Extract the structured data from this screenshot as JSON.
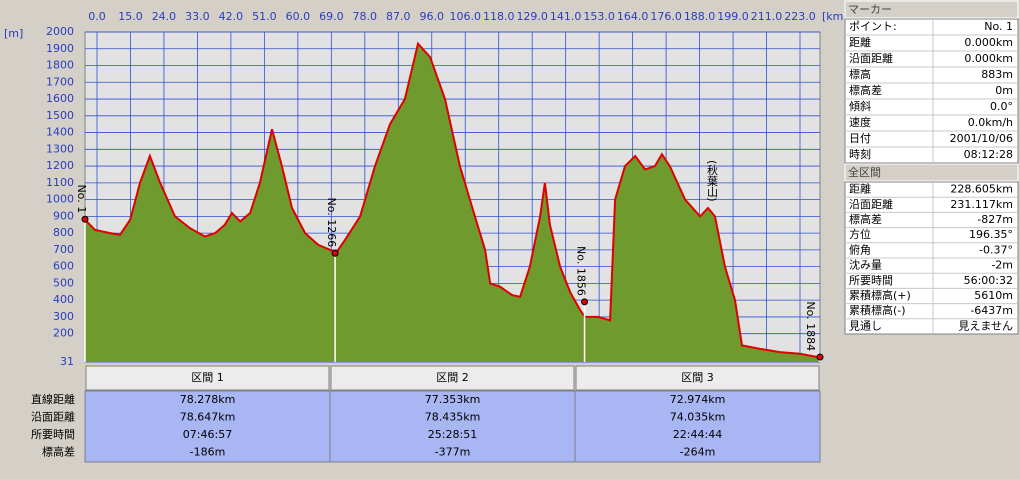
{
  "chart_data": {
    "type": "area",
    "y_axis_label": "[m]",
    "x_axis_label": "[km]",
    "xtick_labels": [
      "0.0",
      "15.0",
      "24.0",
      "33.0",
      "42.0",
      "51.0",
      "60.0",
      "69.0",
      "78.0",
      "87.0",
      "96.0",
      "106.0",
      "118.0",
      "129.0",
      "141.0",
      "153.0",
      "164.0",
      "176.0",
      "188.0",
      "199.0",
      "211.0",
      "223.0"
    ],
    "xlim": [
      0,
      231.117
    ],
    "ylim": [
      31,
      2000
    ],
    "yticks": [
      31,
      200,
      300,
      400,
      500,
      600,
      700,
      800,
      900,
      1000,
      1100,
      1200,
      1300,
      1400,
      1500,
      1600,
      1700,
      1800,
      1900,
      2000
    ],
    "grid": true,
    "x": [
      0,
      3.1,
      7.9,
      11.0,
      14.2,
      17.3,
      20.4,
      23.6,
      28.3,
      33.0,
      37.7,
      40.9,
      44.0,
      46.2,
      48.8,
      51.9,
      55.0,
      58.8,
      61.9,
      65.1,
      69.2,
      73.3,
      77.1,
      78.9,
      81.8,
      86.5,
      91.2,
      95.9,
      100.6,
      104.7,
      108.5,
      113.2,
      117.9,
      122.6,
      125.8,
      127.4,
      130.5,
      134.3,
      136.8,
      139.9,
      143.1,
      144.6,
      146.2,
      149.4,
      152.5,
      155.7,
      157.2,
      161.3,
      165.1,
      166.7,
      169.8,
      173.0,
      176.1,
      179.2,
      181.4,
      183.9,
      188.7,
      193.4,
      195.9,
      198.1,
      201.2,
      204.4,
      206.6,
      212.2,
      218.5,
      224.8,
      230.5
    ],
    "series": [
      {
        "color": "#e00000",
        "fill": "#6f9a2e",
        "values": [
          880,
          820,
          800,
          790,
          880,
          1100,
          1260,
          1100,
          900,
          830,
          780,
          800,
          850,
          920,
          870,
          920,
          1100,
          1420,
          1200,
          950,
          800,
          730,
          700,
          680,
          760,
          900,
          1200,
          1450,
          1600,
          1930,
          1850,
          1600,
          1200,
          900,
          700,
          500,
          480,
          430,
          420,
          600,
          900,
          1100,
          850,
          600,
          450,
          340,
          300,
          300,
          280,
          1000,
          1200,
          1260,
          1180,
          1200,
          1270,
          1200,
          1000,
          900,
          950,
          900,
          600,
          400,
          130,
          110,
          90,
          80,
          60
        ]
      }
    ],
    "markers": [
      {
        "label": "No. 1",
        "x": 0,
        "y": 883
      },
      {
        "label": "No. 1266",
        "x": 78.647,
        "y": 680
      },
      {
        "label": "No. 1856",
        "x": 157.082,
        "y": 390
      },
      {
        "label": "No. 1884",
        "x": 231.117,
        "y": 60
      }
    ],
    "annotations": [
      "(秋葉山)"
    ]
  },
  "sections": {
    "headers": [
      "区間 1",
      "区間 2",
      "区間 3"
    ],
    "rows": [
      {
        "label": "直線距離",
        "values": [
          "78.278km",
          "77.353km",
          "72.974km"
        ]
      },
      {
        "label": "沿面距離",
        "values": [
          "78.647km",
          "78.435km",
          "74.035km"
        ]
      },
      {
        "label": "所要時間",
        "values": [
          "07:46:57",
          "25:28:51",
          "22:44:44"
        ]
      },
      {
        "label": "標高差",
        "values": [
          "-186m",
          "-377m",
          "-264m"
        ]
      }
    ]
  },
  "marker_panel": {
    "title": "マーカー",
    "rows": [
      [
        "ポイント:",
        "No. 1"
      ],
      [
        "距離",
        "0.000km"
      ],
      [
        "沿面距離",
        "0.000km"
      ],
      [
        "標高",
        "883m"
      ],
      [
        "標高差",
        "0m"
      ],
      [
        "傾斜",
        "0.0°"
      ],
      [
        "速度",
        "0.0km/h"
      ],
      [
        "日付",
        "2001/10/06"
      ],
      [
        "時刻",
        "08:12:28"
      ]
    ]
  },
  "total_panel": {
    "title": "全区間",
    "rows": [
      [
        "距離",
        "228.605km"
      ],
      [
        "沿面距離",
        "231.117km"
      ],
      [
        "標高差",
        "-827m"
      ],
      [
        "方位",
        "196.35°"
      ],
      [
        "俯角",
        "-0.37°"
      ],
      [
        "沈み量",
        "-2m"
      ],
      [
        "所要時間",
        "56:00:32"
      ],
      [
        "累積標高(+)",
        "5610m"
      ],
      [
        "累積標高(-)",
        "-6437m"
      ],
      [
        "見通し",
        "見えません"
      ]
    ]
  }
}
